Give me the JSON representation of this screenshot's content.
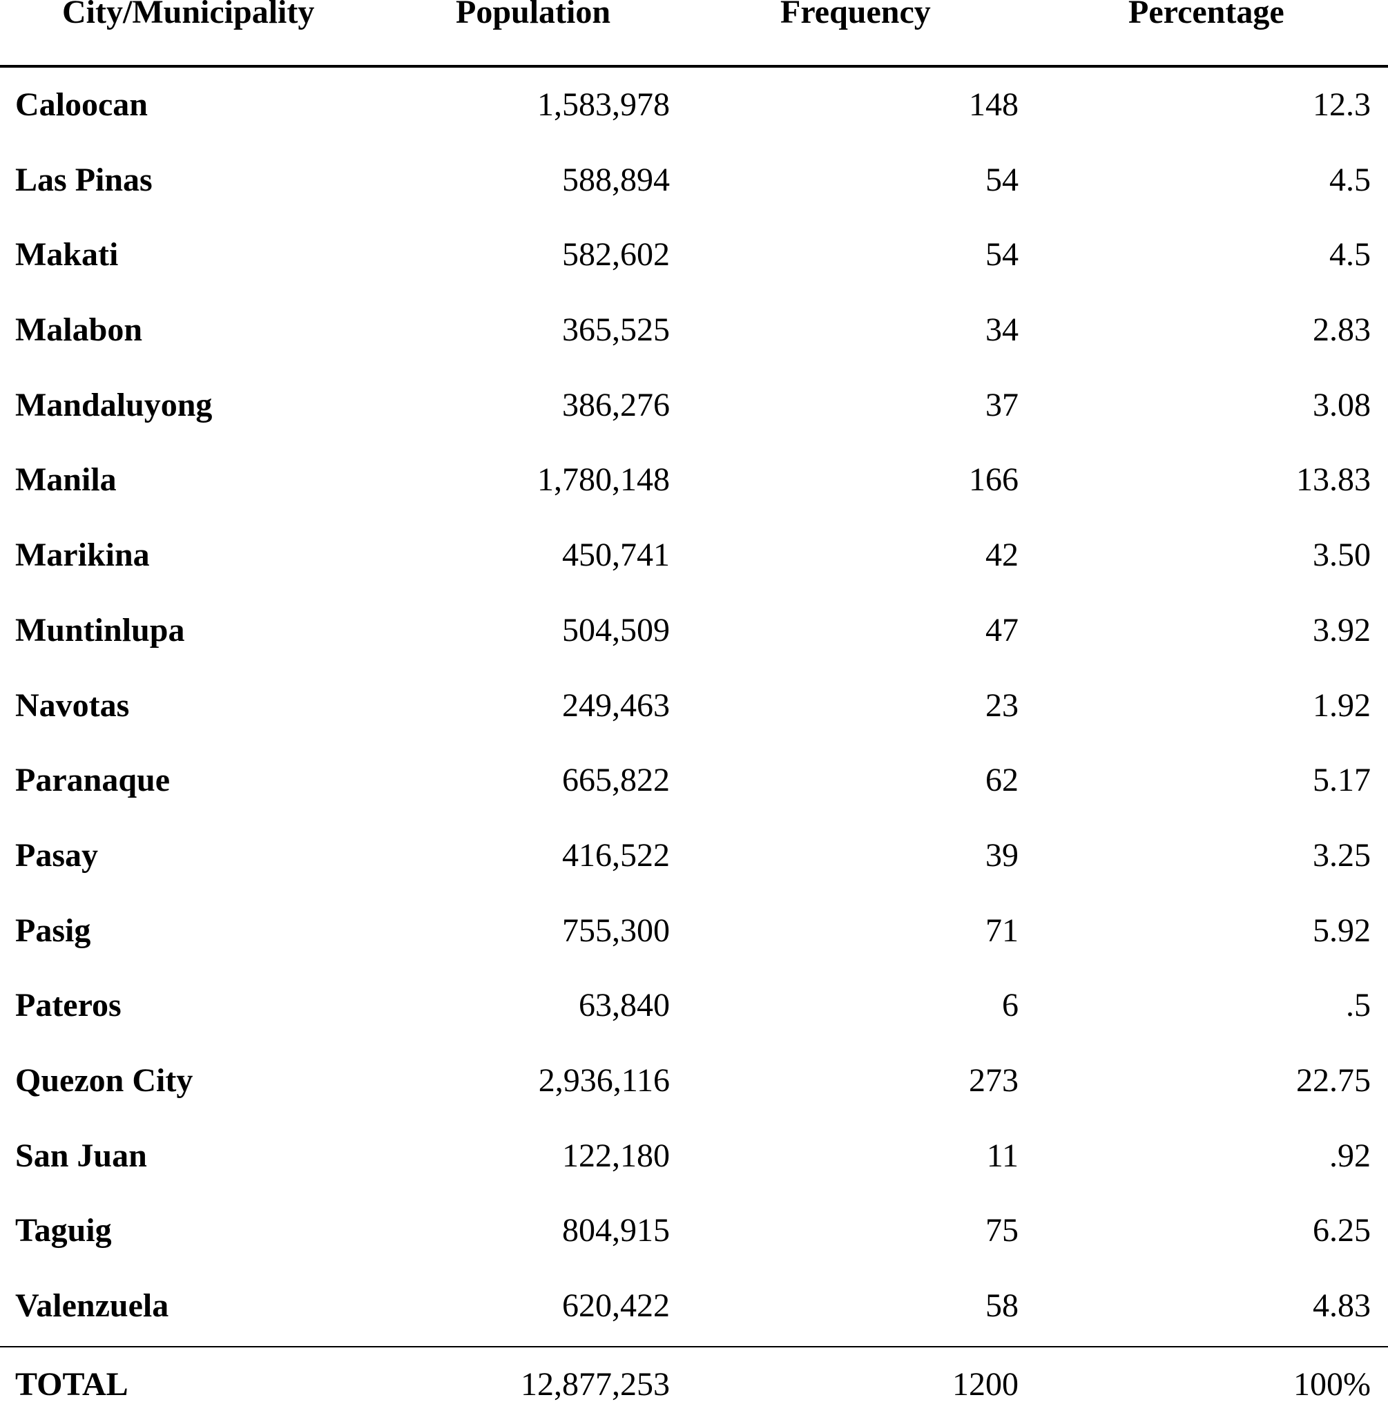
{
  "table": {
    "headers": {
      "city": "City/Municipality",
      "population": "Population",
      "frequency": "Frequency",
      "percentage": "Percentage"
    },
    "rows": [
      {
        "city": "Caloocan",
        "population": "1,583,978",
        "frequency": "148",
        "percentage": "12.3"
      },
      {
        "city": "Las Pinas",
        "population": "588,894",
        "frequency": "54",
        "percentage": "4.5"
      },
      {
        "city": "Makati",
        "population": "582,602",
        "frequency": "54",
        "percentage": "4.5"
      },
      {
        "city": "Malabon",
        "population": "365,525",
        "frequency": "34",
        "percentage": "2.83"
      },
      {
        "city": "Mandaluyong",
        "population": "386,276",
        "frequency": "37",
        "percentage": "3.08"
      },
      {
        "city": "Manila",
        "population": "1,780,148",
        "frequency": "166",
        "percentage": "13.83"
      },
      {
        "city": "Marikina",
        "population": "450,741",
        "frequency": "42",
        "percentage": "3.50"
      },
      {
        "city": "Muntinlupa",
        "population": "504,509",
        "frequency": "47",
        "percentage": "3.92"
      },
      {
        "city": "Navotas",
        "population": "249,463",
        "frequency": "23",
        "percentage": "1.92"
      },
      {
        "city": "Paranaque",
        "population": "665,822",
        "frequency": "62",
        "percentage": "5.17"
      },
      {
        "city": "Pasay",
        "population": "416,522",
        "frequency": "39",
        "percentage": "3.25"
      },
      {
        "city": "Pasig",
        "population": "755,300",
        "frequency": "71",
        "percentage": "5.92"
      },
      {
        "city": "Pateros",
        "population": "63,840",
        "frequency": "6",
        "percentage": ".5"
      },
      {
        "city": "Quezon City",
        "population": "2,936,116",
        "frequency": "273",
        "percentage": "22.75"
      },
      {
        "city": "San Juan",
        "population": "122,180",
        "frequency": "11",
        "percentage": ".92"
      },
      {
        "city": "Taguig",
        "population": "804,915",
        "frequency": "75",
        "percentage": "6.25"
      },
      {
        "city": "Valenzuela",
        "population": "620,422",
        "frequency": "58",
        "percentage": "4.83"
      }
    ],
    "total": {
      "label": "TOTAL",
      "population": "12,877,253",
      "frequency": "1200",
      "percentage": "100%"
    }
  }
}
